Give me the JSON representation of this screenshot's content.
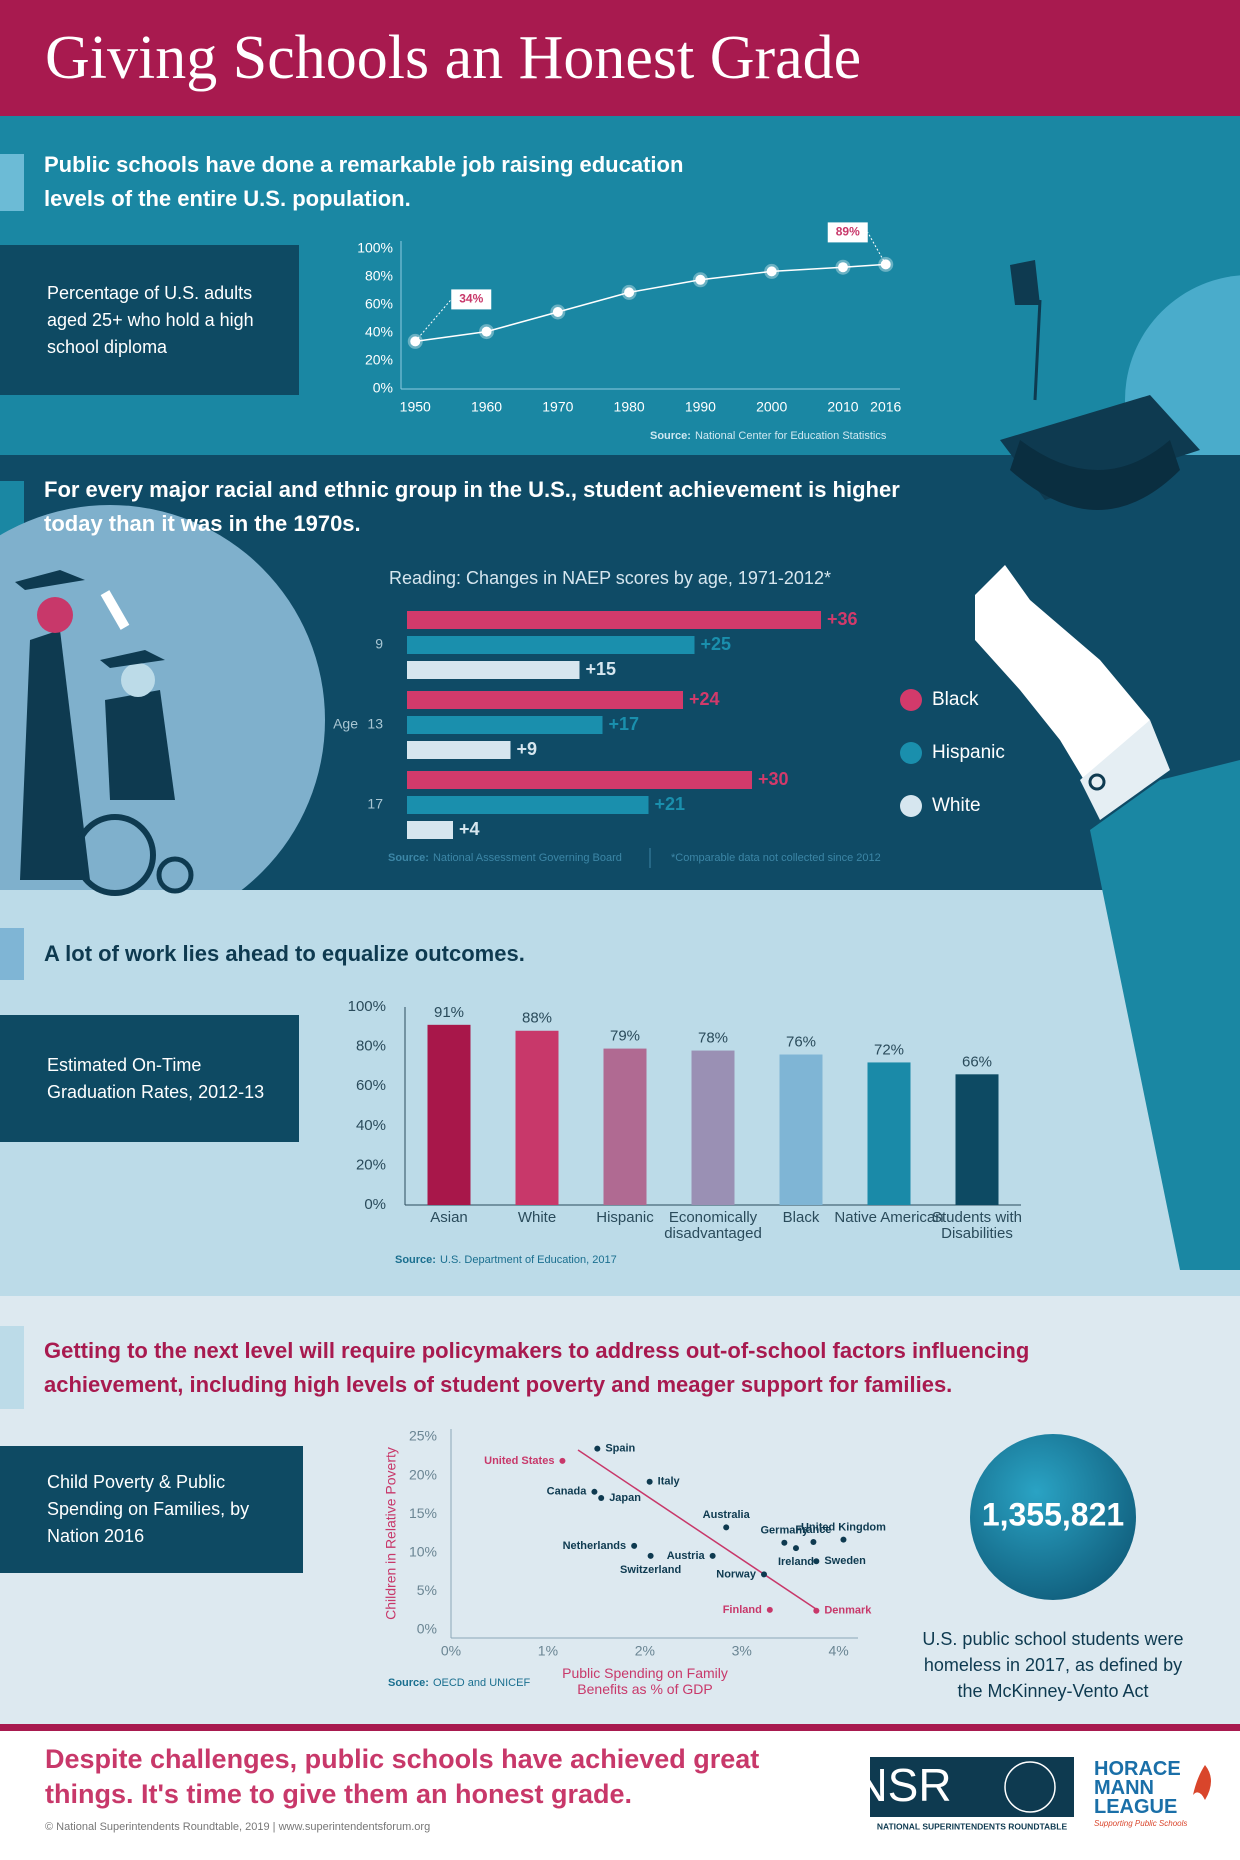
{
  "title": "Giving Schools an Honest Grade",
  "headings": [
    "Public schools have done a remarkable job raising education levels of the entire U.S. population.",
    "For every major racial and ethnic group in the U.S., student achievement is higher today than it was in the 1970s.",
    "A lot of work lies ahead to equalize outcomes.",
    "Getting to the next level will require policymakers to address out-of-school factors influencing achievement, including high levels of student poverty and meager support for families."
  ],
  "chart_data": [
    {
      "type": "line",
      "description": "Percentage of U.S. adults aged 25+ who hold a high school diploma",
      "x": [
        1950,
        1960,
        1970,
        1980,
        1990,
        2000,
        2010,
        2016
      ],
      "values": [
        34,
        41,
        55,
        69,
        78,
        84,
        87,
        89
      ],
      "value_labels": [
        "34%",
        null,
        null,
        null,
        null,
        null,
        null,
        "89%"
      ],
      "color": "#ffffff",
      "xlim": [
        1948,
        2018
      ],
      "xticks": [
        1950,
        1960,
        1970,
        1980,
        1990,
        2000,
        2010,
        2016
      ],
      "ylim": [
        0,
        100
      ],
      "yticks": [
        {
          "value": 0,
          "label": "0%"
        },
        {
          "value": 20,
          "label": "20%"
        },
        {
          "value": 40,
          "label": "40%"
        },
        {
          "value": 60,
          "label": "60%"
        },
        {
          "value": 80,
          "label": "80%"
        },
        {
          "value": 100,
          "label": "100%"
        }
      ],
      "source_label": "Source:",
      "source": "National Center for Education Statistics"
    },
    {
      "type": "barh",
      "title": "Reading: Changes in NAEP scores by age, 1971-2012*",
      "ylabel": "Age",
      "categories": [
        "9",
        "13",
        "17"
      ],
      "series": [
        {
          "name": "Black",
          "color": "#d23a6b",
          "values": [
            36,
            24,
            30
          ],
          "value_labels": [
            "+36",
            "+24",
            "+30"
          ]
        },
        {
          "name": "Hispanic",
          "color": "#1a8fad",
          "values": [
            25,
            17,
            21
          ],
          "value_labels": [
            "+25",
            "+17",
            "+21"
          ]
        },
        {
          "name": "White",
          "color": "#d6e6ef",
          "values": [
            15,
            9,
            4
          ],
          "value_labels": [
            "+15",
            "+9",
            "+4"
          ]
        }
      ],
      "source_label": "Source:",
      "source": "National Assessment Governing Board",
      "note": "*Comparable data not collected since 2012"
    },
    {
      "type": "bar",
      "description": "Estimated On-Time Graduation Rates, 2012-13",
      "categories": [
        "Asian",
        "White",
        "Hispanic",
        "Economically disadvantaged",
        "Black",
        "Native American",
        "Students with Disabilities"
      ],
      "values": [
        91,
        88,
        79,
        78,
        76,
        72,
        66
      ],
      "value_labels": [
        "91%",
        "88%",
        "79%",
        "78%",
        "76%",
        "72%",
        "66%"
      ],
      "colors": [
        "#a8174a",
        "#c8386a",
        "#b06a92",
        "#9a90b4",
        "#7fb5d5",
        "#1a8aa8",
        "#0d4a63"
      ],
      "ylim": [
        0,
        100
      ],
      "yticks": [
        {
          "value": 0,
          "label": "0%"
        },
        {
          "value": 20,
          "label": "20%"
        },
        {
          "value": 40,
          "label": "40%"
        },
        {
          "value": 60,
          "label": "60%"
        },
        {
          "value": 80,
          "label": "80%"
        },
        {
          "value": 100,
          "label": "100%"
        }
      ],
      "source_label": "Source:",
      "source": "U.S. Department of Education, 2017"
    },
    {
      "type": "scatter",
      "description": "Child Poverty & Public Spending on Families, by Nation 2016",
      "xlabel": "Public Spending on Family Benefits as % of GDP",
      "ylabel": "Children in Relative Poverty",
      "labels": [
        "United States",
        "Spain",
        "Italy",
        "Canada",
        "Japan",
        "Australia",
        "Germany",
        "France",
        "United Kingdom",
        "Netherlands",
        "Austria",
        "Switzerland",
        "Ireland",
        "Sweden",
        "Norway",
        "Finland",
        "Denmark"
      ],
      "x": [
        1.15,
        1.51,
        2.05,
        1.48,
        1.55,
        2.84,
        3.44,
        3.74,
        4.05,
        1.89,
        2.7,
        2.06,
        3.56,
        3.77,
        3.23,
        3.29,
        3.77
      ],
      "values": [
        21.9,
        23.5,
        19.2,
        17.9,
        17.1,
        13.3,
        11.3,
        11.4,
        11.7,
        10.9,
        9.6,
        9.6,
        10.6,
        8.9,
        7.2,
        2.6,
        2.5
      ],
      "colors": [
        "#c8386a",
        "#0e3a50",
        "#0e3a50",
        "#0e3a50",
        "#0e3a50",
        "#0e3a50",
        "#0e3a50",
        "#0e3a50",
        "#0e3a50",
        "#0e3a50",
        "#0e3a50",
        "#0e3a50",
        "#0e3a50",
        "#0e3a50",
        "#0e3a50",
        "#c8386a",
        "#c8386a"
      ],
      "xlim": [
        0,
        4.2
      ],
      "xticks": [
        {
          "value": 0,
          "label": "0%"
        },
        {
          "value": 1,
          "label": "1%"
        },
        {
          "value": 2,
          "label": "2%"
        },
        {
          "value": 3,
          "label": "3%"
        },
        {
          "value": 4,
          "label": "4%"
        }
      ],
      "ylim": [
        0,
        25
      ],
      "yticks": [
        {
          "value": 0,
          "label": "0%"
        },
        {
          "value": 5,
          "label": "5%"
        },
        {
          "value": 10,
          "label": "10%"
        },
        {
          "value": 15,
          "label": "15%"
        },
        {
          "value": 20,
          "label": "20%"
        },
        {
          "value": 25,
          "label": "25%"
        }
      ],
      "source_label": "Source:",
      "source": "OECD and UNICEF"
    }
  ],
  "stat": {
    "number": "1,355,821",
    "caption": "U.S. public school students were homeless in 2017, as defined by the McKinney-Vento Act"
  },
  "footer": {
    "message": "Despite challenges, public schools have achieved great things. It's time to give them an honest grade.",
    "copyright": "© National Superintendents Roundtable, 2019 | www.superintendentsforum.org"
  },
  "logos": {
    "nsr": "NSR",
    "nsr_name": "NATIONAL SUPERINTENDENTS ROUNDTABLE",
    "hml": "HORACE MANN LEAGUE",
    "hml_tagline": "Supporting Public Schools"
  }
}
